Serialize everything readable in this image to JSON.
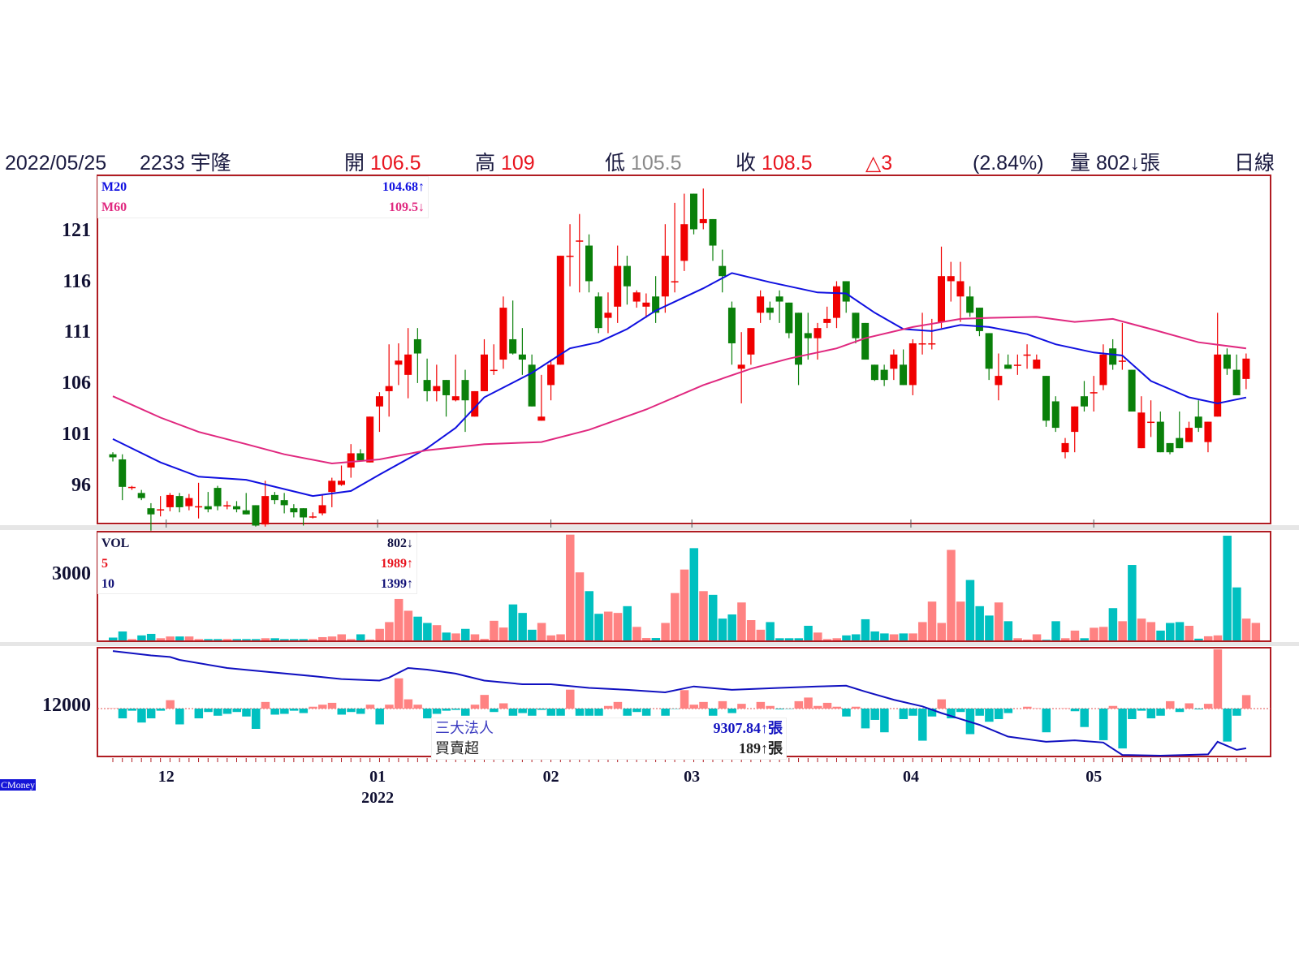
{
  "header": {
    "date": "2022/05/25",
    "stock": "2233 宇隆",
    "open_label": "開",
    "open": "106.5",
    "high_label": "高",
    "high": "109",
    "low_label": "低",
    "low": "105.5",
    "close_label": "收",
    "close": "108.5",
    "change": "△3",
    "change_pct": "(2.84%)",
    "volume_label": "量",
    "volume": "802↓張",
    "period": "日線"
  },
  "legends": {
    "m20_label": "M20",
    "m20_value": "104.68↑",
    "m60_label": "M60",
    "m60_value": "109.5↓",
    "vol_label": "VOL",
    "vol_value": "802↓",
    "vol5_label": "5",
    "vol5_value": "1989↑",
    "vol10_label": "10",
    "vol10_value": "1399↑",
    "inst_label": "三大法人",
    "inst_value": "9307.84↑張",
    "net_label": "買賣超",
    "net_value": "189↑張"
  },
  "logo": "CMoney",
  "colors": {
    "up": "#f00000",
    "down": "#0a800a",
    "vol_up": "#ff8282",
    "vol_down": "#00c0c0",
    "m20": "#1010e0",
    "m60": "#e0287f",
    "inst": "#1010c0",
    "frame": "#b01c22"
  },
  "chart_data": {
    "type": "candlestick",
    "price_axis": {
      "ticks": [
        "121",
        "116",
        "111",
        "106",
        "101",
        "96"
      ],
      "tick_values": [
        121,
        116,
        111,
        106,
        101,
        96
      ],
      "ylim": [
        92.3,
        126.5
      ]
    },
    "volume_axis": {
      "ticks": [
        "3000"
      ],
      "tick_values": [
        3000
      ],
      "ylim": [
        0,
        4950
      ]
    },
    "inst_axis": {
      "ticks": [
        "12000"
      ],
      "tick_values": [
        12000
      ]
    },
    "months": [
      {
        "label": "12",
        "index": 5.6
      },
      {
        "label": "01",
        "index": 27.8,
        "year": "2022"
      },
      {
        "label": "02",
        "index": 46
      },
      {
        "label": "03",
        "index": 60.8
      },
      {
        "label": "04",
        "index": 83.8
      },
      {
        "label": "05",
        "index": 103
      }
    ],
    "ohlc": [
      [
        99.1,
        99.3,
        98.4,
        98.8
      ],
      [
        98.6,
        99.1,
        94.6,
        95.9
      ],
      [
        95.9,
        96.0,
        95.6,
        95.9
      ],
      [
        95.3,
        95.6,
        94.6,
        94.8
      ],
      [
        93.8,
        94.3,
        91.6,
        93.2
      ],
      [
        93.6,
        95.0,
        93.0,
        93.7
      ],
      [
        93.9,
        95.3,
        93.5,
        95.1
      ],
      [
        95.0,
        95.3,
        93.4,
        93.9
      ],
      [
        94.0,
        95.2,
        93.6,
        94.8
      ],
      [
        94.0,
        96.3,
        92.8,
        94.0
      ],
      [
        94.0,
        95.4,
        93.4,
        93.7
      ],
      [
        95.8,
        96.0,
        93.6,
        94.0
      ],
      [
        94.1,
        94.5,
        93.7,
        94.1
      ],
      [
        94.0,
        94.5,
        93.4,
        93.7
      ],
      [
        93.6,
        95.3,
        93.2,
        93.2
      ],
      [
        94.1,
        94.1,
        92.0,
        92.1
      ],
      [
        92.2,
        96.5,
        92.0,
        95.0
      ],
      [
        95.1,
        95.4,
        94.2,
        94.6
      ],
      [
        94.6,
        95.3,
        93.3,
        94.1
      ],
      [
        93.8,
        94.2,
        92.9,
        93.4
      ],
      [
        93.8,
        93.8,
        92.1,
        92.9
      ],
      [
        93.0,
        93.4,
        92.8,
        93.0
      ],
      [
        93.3,
        95.1,
        93.1,
        94.1
      ],
      [
        95.4,
        96.8,
        93.9,
        96.5
      ],
      [
        96.1,
        98.0,
        96.0,
        96.5
      ],
      [
        97.8,
        100.1,
        96.8,
        99.2
      ],
      [
        99.2,
        99.6,
        98.4,
        98.5
      ],
      [
        98.3,
        102.8,
        98.3,
        102.8
      ],
      [
        103.8,
        105.2,
        101.3,
        104.8
      ],
      [
        105.3,
        109.9,
        102.8,
        105.8
      ],
      [
        107.9,
        110.0,
        105.9,
        108.3
      ],
      [
        106.9,
        111.5,
        104.6,
        108.9
      ],
      [
        110.4,
        111.5,
        106.1,
        109.0
      ],
      [
        106.4,
        108.5,
        104.3,
        105.3
      ],
      [
        105.3,
        107.9,
        104.3,
        105.8
      ],
      [
        106.4,
        106.4,
        102.8,
        104.9
      ],
      [
        104.4,
        108.9,
        104.3,
        104.8
      ],
      [
        106.4,
        107.4,
        101.3,
        104.4
      ],
      [
        102.8,
        105.3,
        102.8,
        105.3
      ],
      [
        105.3,
        110.4,
        105.3,
        108.9
      ],
      [
        107.4,
        109.9,
        106.9,
        107.4
      ],
      [
        108.4,
        114.6,
        107.5,
        113.5
      ],
      [
        110.4,
        114.2,
        108.9,
        109.0
      ],
      [
        108.9,
        111.5,
        106.9,
        108.4
      ],
      [
        107.9,
        108.9,
        103.8,
        103.8
      ],
      [
        102.4,
        106.9,
        102.4,
        102.8
      ],
      [
        105.9,
        108.4,
        104.4,
        107.9
      ],
      [
        107.9,
        118.6,
        107.9,
        118.6
      ],
      [
        118.6,
        121.7,
        115.6,
        118.6
      ],
      [
        120.1,
        122.7,
        115.0,
        120.1
      ],
      [
        119.6,
        120.7,
        115.0,
        116.1
      ],
      [
        114.6,
        115.0,
        111.0,
        111.5
      ],
      [
        112.5,
        115.0,
        111.0,
        113.0
      ],
      [
        113.6,
        119.6,
        112.0,
        117.6
      ],
      [
        117.6,
        118.6,
        113.8,
        115.6
      ],
      [
        114.1,
        115.2,
        113.5,
        115.0
      ],
      [
        113.6,
        114.9,
        112.5,
        114.0
      ],
      [
        114.6,
        116.6,
        112.0,
        113.0
      ],
      [
        114.6,
        121.7,
        113.0,
        118.6
      ],
      [
        116.1,
        123.8,
        115.0,
        116.1
      ],
      [
        118.1,
        124.7,
        117.1,
        121.7
      ],
      [
        124.7,
        124.7,
        120.7,
        121.2
      ],
      [
        121.8,
        125.2,
        121.2,
        122.2
      ],
      [
        122.2,
        122.2,
        118.1,
        119.6
      ],
      [
        117.6,
        119.2,
        115.0,
        116.6
      ],
      [
        113.5,
        114.1,
        107.9,
        110.0
      ],
      [
        107.5,
        111.1,
        104.1,
        107.9
      ],
      [
        108.9,
        111.5,
        107.9,
        111.5
      ],
      [
        113.0,
        115.2,
        112.0,
        114.6
      ],
      [
        113.5,
        114.1,
        112.3,
        113.0
      ],
      [
        114.6,
        115.2,
        112.0,
        114.1
      ],
      [
        114.0,
        114.0,
        110.5,
        111.0
      ],
      [
        113.0,
        113.0,
        105.9,
        107.9
      ],
      [
        111.0,
        113.0,
        108.4,
        110.5
      ],
      [
        110.5,
        112.0,
        108.4,
        111.5
      ],
      [
        112.0,
        113.6,
        111.5,
        112.4
      ],
      [
        112.5,
        116.1,
        111.5,
        115.6
      ],
      [
        116.1,
        116.1,
        113.0,
        114.1
      ],
      [
        113.0,
        113.0,
        110.0,
        110.5
      ],
      [
        112.0,
        112.0,
        108.4,
        108.4
      ],
      [
        107.9,
        107.9,
        106.3,
        106.4
      ],
      [
        107.4,
        107.9,
        105.8,
        106.4
      ],
      [
        107.5,
        109.4,
        106.4,
        108.9
      ],
      [
        107.9,
        109.4,
        105.9,
        105.9
      ],
      [
        105.9,
        110.4,
        104.9,
        110.0
      ],
      [
        110.0,
        113.0,
        108.9,
        110.0
      ],
      [
        110.0,
        112.4,
        109.4,
        110.0
      ],
      [
        112.1,
        119.5,
        111.5,
        116.6
      ],
      [
        116.1,
        118.0,
        114.1,
        116.6
      ],
      [
        114.6,
        118.0,
        112.1,
        116.1
      ],
      [
        114.6,
        115.6,
        112.6,
        113.0
      ],
      [
        113.5,
        113.5,
        110.7,
        111.2
      ],
      [
        111.0,
        111.0,
        106.4,
        107.5
      ],
      [
        105.9,
        109.0,
        104.4,
        106.8
      ],
      [
        107.9,
        108.9,
        107.5,
        107.5
      ],
      [
        107.9,
        108.9,
        106.9,
        107.9
      ],
      [
        108.9,
        109.9,
        107.5,
        108.9
      ],
      [
        107.5,
        108.9,
        107.5,
        108.4
      ],
      [
        106.8,
        106.8,
        101.8,
        102.4
      ],
      [
        104.3,
        104.8,
        101.3,
        101.7
      ],
      [
        99.3,
        100.7,
        98.7,
        100.2
      ],
      [
        101.3,
        103.8,
        99.3,
        103.8
      ],
      [
        104.8,
        106.3,
        103.3,
        103.8
      ],
      [
        105.2,
        106.8,
        103.3,
        105.2
      ],
      [
        105.9,
        109.9,
        105.4,
        108.9
      ],
      [
        109.5,
        110.4,
        107.4,
        107.9
      ],
      [
        108.3,
        112.0,
        107.4,
        108.3
      ],
      [
        107.4,
        107.4,
        103.3,
        103.3
      ],
      [
        99.7,
        104.8,
        99.7,
        103.2
      ],
      [
        102.3,
        104.4,
        100.8,
        102.3
      ],
      [
        102.3,
        103.3,
        99.3,
        99.3
      ],
      [
        100.2,
        100.2,
        99.1,
        99.3
      ],
      [
        100.7,
        103.3,
        99.7,
        99.7
      ],
      [
        100.3,
        102.3,
        100.3,
        101.7
      ],
      [
        102.8,
        104.4,
        101.3,
        101.7
      ],
      [
        100.3,
        102.3,
        99.3,
        102.3
      ],
      [
        102.8,
        113.0,
        102.8,
        108.9
      ],
      [
        108.9,
        109.5,
        106.9,
        107.5
      ],
      [
        107.4,
        108.9,
        104.9,
        104.9
      ],
      [
        106.5,
        109,
        105.5,
        108.5
      ]
    ],
    "ma20": [
      [
        0,
        100.6
      ],
      [
        5,
        98.3
      ],
      [
        9,
        96.9
      ],
      [
        14,
        96.6
      ],
      [
        21,
        95.0
      ],
      [
        25,
        95.5
      ],
      [
        28,
        97.1
      ],
      [
        33,
        99.7
      ],
      [
        36,
        101.7
      ],
      [
        39,
        104.7
      ],
      [
        44,
        107.1
      ],
      [
        48,
        109.5
      ],
      [
        51,
        110.1
      ],
      [
        54,
        111.4
      ],
      [
        57,
        113.2
      ],
      [
        62,
        115.4
      ],
      [
        65,
        116.9
      ],
      [
        69,
        116.0
      ],
      [
        74,
        115.0
      ],
      [
        77,
        114.9
      ],
      [
        80,
        113.0
      ],
      [
        83,
        111.4
      ],
      [
        86,
        111.2
      ],
      [
        89,
        111.8
      ],
      [
        92,
        111.6
      ],
      [
        96,
        110.9
      ],
      [
        99,
        109.9
      ],
      [
        103,
        109.1
      ],
      [
        106,
        108.8
      ],
      [
        109,
        106.3
      ],
      [
        113,
        104.7
      ],
      [
        116,
        104.1
      ],
      [
        119,
        104.68
      ]
    ],
    "ma60": [
      [
        0,
        104.8
      ],
      [
        5,
        102.7
      ],
      [
        9,
        101.3
      ],
      [
        14,
        100.1
      ],
      [
        18,
        99.1
      ],
      [
        23,
        98.2
      ],
      [
        28,
        98.6
      ],
      [
        33,
        99.5
      ],
      [
        39,
        100.1
      ],
      [
        45,
        100.3
      ],
      [
        50,
        101.5
      ],
      [
        56,
        103.5
      ],
      [
        62,
        105.9
      ],
      [
        67,
        107.5
      ],
      [
        71,
        108.5
      ],
      [
        76,
        109.5
      ],
      [
        79,
        110.5
      ],
      [
        84,
        111.6
      ],
      [
        89,
        112.4
      ],
      [
        92,
        112.5
      ],
      [
        97,
        112.6
      ],
      [
        101,
        112.1
      ],
      [
        105,
        112.4
      ],
      [
        109,
        111.4
      ],
      [
        114,
        110.1
      ],
      [
        119,
        109.5
      ]
    ],
    "volume": [
      130,
      410,
      60,
      230,
      300,
      100,
      180,
      180,
      180,
      60,
      60,
      60,
      60,
      60,
      60,
      60,
      100,
      100,
      60,
      60,
      60,
      60,
      150,
      180,
      280,
      60,
      280,
      40,
      530,
      840,
      1900,
      1360,
      1090,
      800,
      700,
      360,
      320,
      530,
      280,
      70,
      900,
      590,
      1650,
      1260,
      490,
      800,
      230,
      280,
      4850,
      3120,
      2260,
      1220,
      1320,
      1260,
      1570,
      620,
      110,
      110,
      800,
      2170,
      3250,
      4230,
      2260,
      2090,
      1000,
      1190,
      1740,
      930,
      490,
      840,
      100,
      100,
      100,
      670,
      360,
      60,
      100,
      230,
      280,
      970,
      410,
      320,
      280,
      320,
      320,
      840,
      1780,
      800,
      4150,
      1780,
      2770,
      1570,
      1140,
      1740,
      880,
      100,
      40,
      280,
      30,
      880,
      100,
      450,
      100,
      580,
      620,
      1480,
      880,
      3460,
      1000,
      840,
      450,
      800,
      840,
      670,
      80,
      190,
      230,
      4800,
      2430,
      1000,
      802
    ],
    "net_buy_sell": [
      5,
      -137,
      -30,
      -196,
      -137,
      -30,
      118,
      -222,
      0,
      -137,
      -48,
      -100,
      -74,
      -48,
      -111,
      -285,
      93,
      -85,
      -74,
      -30,
      -63,
      26,
      55,
      81,
      -85,
      -48,
      -74,
      55,
      -222,
      55,
      425,
      130,
      55,
      -137,
      -74,
      -30,
      -18,
      -100,
      55,
      192,
      -48,
      74,
      -100,
      -63,
      -100,
      -18,
      -100,
      -100,
      266,
      -100,
      -100,
      -100,
      37,
      93,
      -100,
      -48,
      -100,
      0,
      -100,
      -5,
      259,
      55,
      93,
      -100,
      104,
      -63,
      67,
      0,
      93,
      37,
      -11,
      -5,
      104,
      155,
      37,
      81,
      26,
      -111,
      26,
      -278,
      -159,
      -333,
      0,
      -148,
      -100,
      -451,
      -111,
      130,
      -137,
      -48,
      -359,
      -100,
      -185,
      -148,
      -63,
      0,
      26,
      5,
      -333,
      0,
      5,
      -37,
      -259,
      0,
      -444,
      37,
      -560,
      -148,
      -30,
      -137,
      -100,
      104,
      -48,
      74,
      -11,
      67,
      833,
      -463,
      -100,
      189
    ],
    "inst_cumulative": [
      [
        0,
        15900
      ],
      [
        4,
        15600
      ],
      [
        6,
        15500
      ],
      [
        7,
        15300
      ],
      [
        12,
        14750
      ],
      [
        16,
        14500
      ],
      [
        21,
        14200
      ],
      [
        24,
        14000
      ],
      [
        28,
        13900
      ],
      [
        29,
        14100
      ],
      [
        31,
        14750
      ],
      [
        33,
        14640
      ],
      [
        36,
        14370
      ],
      [
        39,
        13900
      ],
      [
        43,
        13650
      ],
      [
        46,
        13650
      ],
      [
        50,
        13400
      ],
      [
        54,
        13270
      ],
      [
        58,
        13100
      ],
      [
        61,
        13500
      ],
      [
        65,
        13270
      ],
      [
        70,
        13400
      ],
      [
        74,
        13500
      ],
      [
        77,
        13550
      ],
      [
        79,
        13150
      ],
      [
        82,
        12600
      ],
      [
        85,
        12150
      ],
      [
        87,
        11700
      ],
      [
        91,
        10900
      ],
      [
        94,
        10100
      ],
      [
        98,
        9750
      ],
      [
        101,
        9850
      ],
      [
        104,
        9700
      ],
      [
        106,
        8860
      ],
      [
        110,
        8750
      ],
      [
        115,
        8900
      ],
      [
        116,
        9750
      ],
      [
        118,
        9200
      ],
      [
        119,
        9307.84
      ]
    ]
  }
}
